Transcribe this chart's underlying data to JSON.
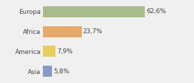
{
  "categories": [
    "Europa",
    "Africa",
    "America",
    "Asia"
  ],
  "values": [
    62.6,
    23.7,
    7.9,
    5.8
  ],
  "labels": [
    "62,6%",
    "23,7%",
    "7,9%",
    "5,8%"
  ],
  "bar_colors": [
    "#a8bb8a",
    "#e5a96c",
    "#e8cf5a",
    "#8899c8"
  ],
  "background_color": "#f0f0f0",
  "xlim": [
    0,
    100
  ],
  "bar_max_pct": 80,
  "label_fontsize": 6.5,
  "category_fontsize": 6.5,
  "bar_height": 0.55
}
